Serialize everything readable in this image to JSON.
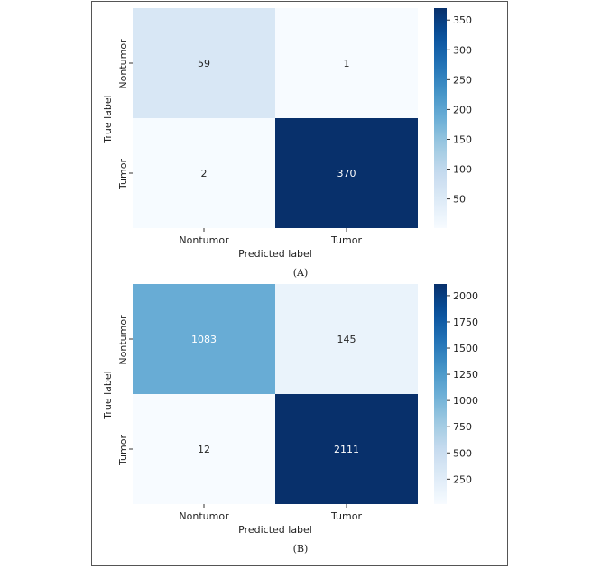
{
  "chart_data": [
    {
      "type": "heatmap",
      "caption": "(A)",
      "xlabel": "Predicted label",
      "ylabel": "True label",
      "x_categories": [
        "Nontumor",
        "Tumor"
      ],
      "y_categories": [
        "Nontumor",
        "Tumor"
      ],
      "values": [
        [
          59,
          1
        ],
        [
          2,
          370
        ]
      ],
      "colorbar": {
        "min": 1,
        "max": 370,
        "ticks": [
          50,
          100,
          150,
          200,
          250,
          300,
          350
        ]
      },
      "colormap": "Blues"
    },
    {
      "type": "heatmap",
      "caption": "(B)",
      "xlabel": "Predicted label",
      "ylabel": "True label",
      "x_categories": [
        "Nontumor",
        "Tumor"
      ],
      "y_categories": [
        "Nontumor",
        "Tumor"
      ],
      "values": [
        [
          1083,
          145
        ],
        [
          12,
          2111
        ]
      ],
      "colorbar": {
        "min": 12,
        "max": 2111,
        "ticks": [
          250,
          500,
          750,
          1000,
          1250,
          1500,
          1750,
          2000
        ]
      },
      "colormap": "Blues"
    }
  ]
}
